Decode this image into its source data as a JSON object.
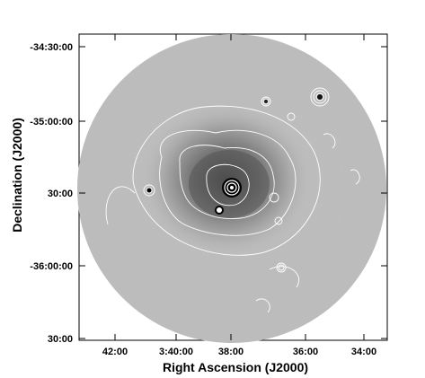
{
  "chart_data": {
    "type": "heatmap",
    "title": "",
    "xlabel": "Right Ascension (J2000)",
    "ylabel": "Declination (J2000)",
    "x_ticks": [
      "42:00",
      "3:40:00",
      "38:00",
      "36:00",
      "34:00"
    ],
    "y_ticks": [
      "-34:30:00",
      "-35:00:00",
      "30:00",
      "-36:00:00",
      "30:00"
    ],
    "colormap": "grayscale",
    "overlay": "white contours",
    "grid": false,
    "field_shape": "circular",
    "colors": {
      "background": "#ffffff",
      "frame": "#000000",
      "contour": "#ffffff"
    }
  }
}
